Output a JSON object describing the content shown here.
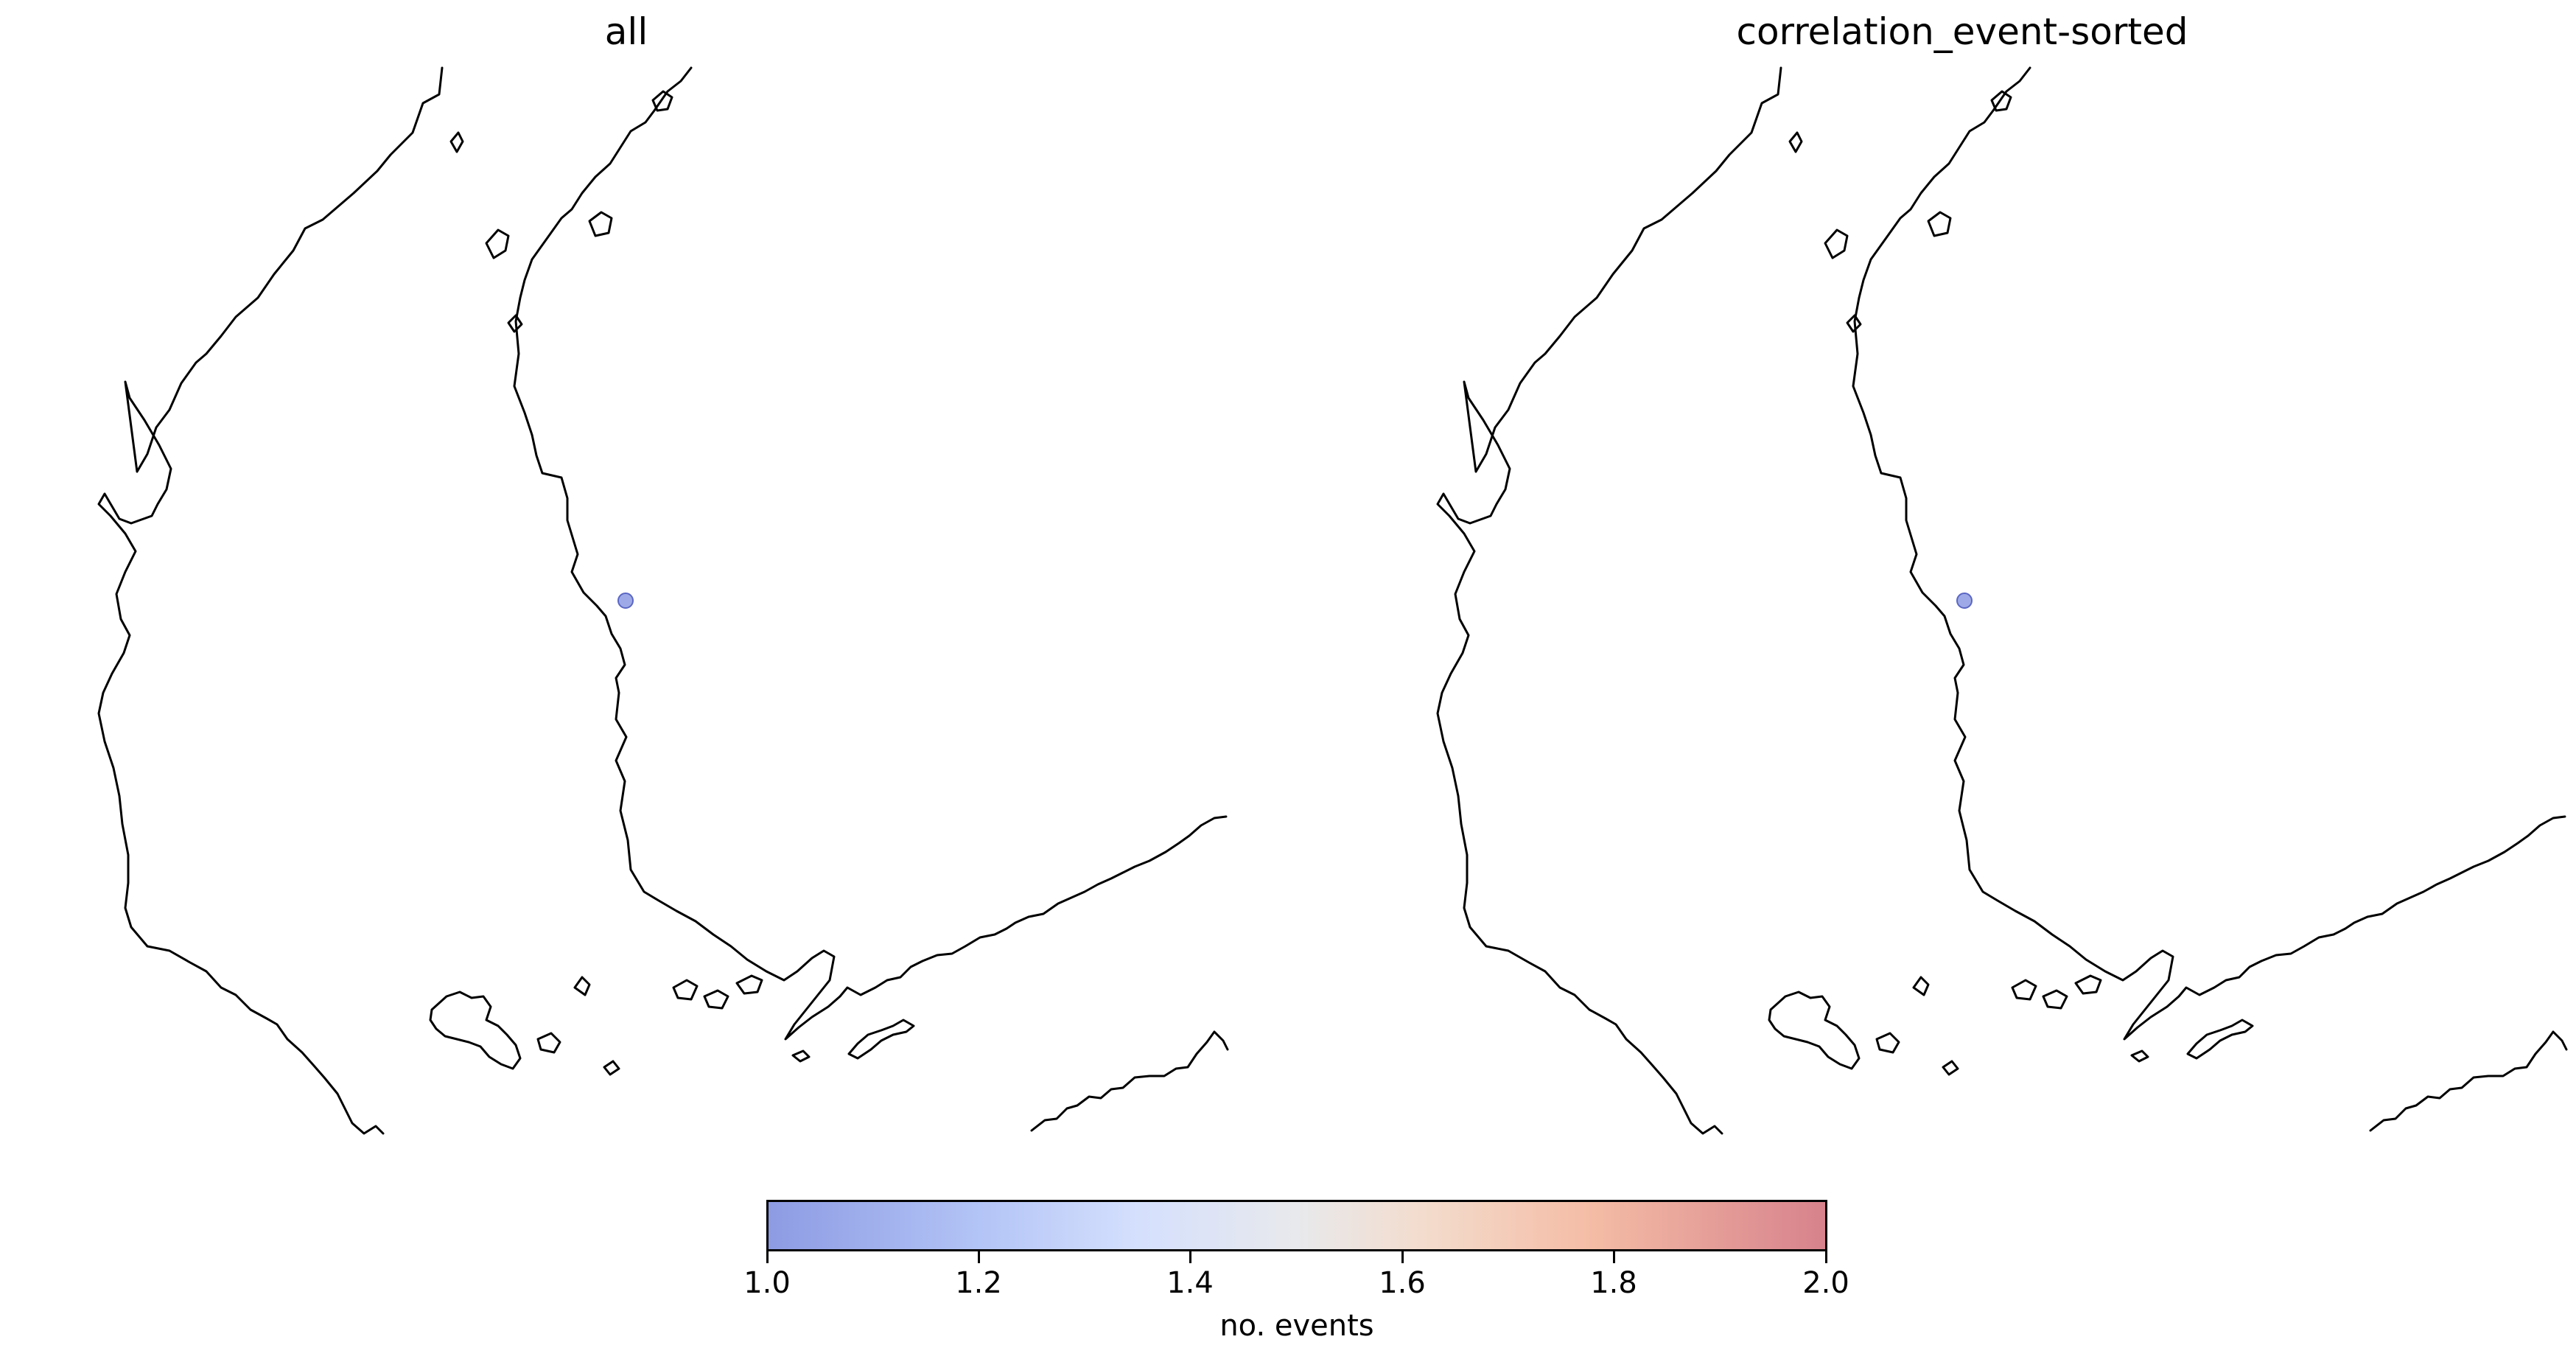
{
  "panels": [
    {
      "title": "all"
    },
    {
      "title": "correlation_event-sorted"
    }
  ],
  "events": [
    {
      "count": 1.0,
      "color": "#8d9be3"
    }
  ],
  "colorbar": {
    "label": "no. events",
    "min": 1.0,
    "max": 2.0,
    "ticks": [
      "1.0",
      "1.2",
      "1.4",
      "1.6",
      "1.8",
      "2.0"
    ],
    "colormap": "coolwarm",
    "color_low": "#8d9be3",
    "color_high": "#d7828c"
  }
}
